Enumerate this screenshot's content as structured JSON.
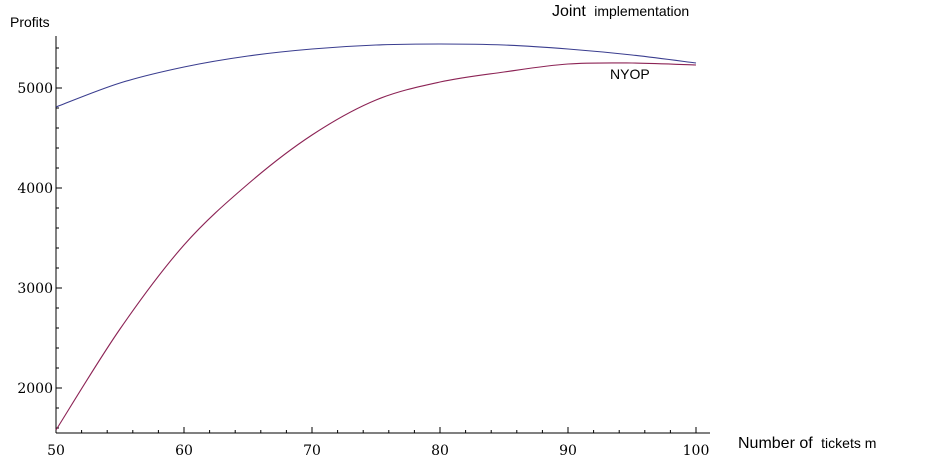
{
  "chart_data": {
    "type": "line",
    "title": "",
    "ylabel": "Profits",
    "xlabel_main": "Number of",
    "xlabel_small": "tickets m",
    "xlim": [
      50,
      100
    ],
    "ylim": [
      1550,
      5550
    ],
    "x_ticks": [
      50,
      60,
      70,
      80,
      90,
      100
    ],
    "y_ticks": [
      2000,
      3000,
      4000,
      5000
    ],
    "grid": false,
    "series": [
      {
        "name": "Joint implementation",
        "name_main": "Joint",
        "name_small": "implementation",
        "color": "#3a3d8f",
        "x": [
          50,
          55,
          60,
          65,
          70,
          75,
          80,
          85,
          90,
          95,
          100
        ],
        "values": [
          4810,
          5050,
          5210,
          5320,
          5390,
          5430,
          5440,
          5430,
          5390,
          5330,
          5250
        ]
      },
      {
        "name": "NYOP",
        "color": "#8c2355",
        "x": [
          50,
          55,
          60,
          65,
          70,
          75,
          80,
          85,
          90,
          95,
          100
        ],
        "values": [
          1580,
          2590,
          3430,
          4040,
          4530,
          4880,
          5060,
          5160,
          5240,
          5250,
          5230
        ]
      }
    ]
  }
}
